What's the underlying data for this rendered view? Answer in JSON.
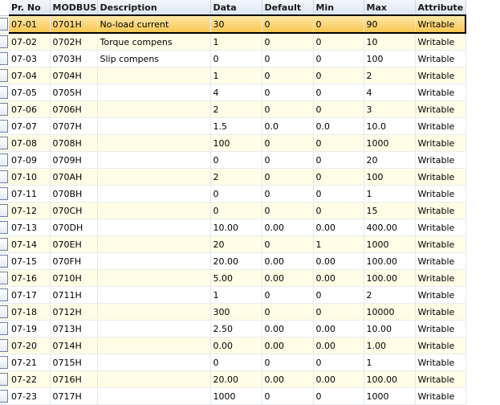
{
  "columns": [
    "Pr. No",
    "MODBUS",
    "Description",
    "Data",
    "Default",
    "Min",
    "Max",
    "Attribute"
  ],
  "selected_row": 0,
  "colors": {
    "selected": "#f8c750",
    "alt_row": "#fffde6",
    "header": "#dde6f3"
  },
  "rows": [
    [
      "07-01",
      "0701H",
      "No-load current",
      "30",
      "0",
      "0",
      "90",
      "Writable"
    ],
    [
      "07-02",
      "0702H",
      "Torque compens",
      "1",
      "0",
      "0",
      "10",
      "Writable"
    ],
    [
      "07-03",
      "0703H",
      "Slip compens",
      "0",
      "0",
      "0",
      "100",
      "Writable"
    ],
    [
      "07-04",
      "0704H",
      "",
      "1",
      "0",
      "0",
      "2",
      "Writable"
    ],
    [
      "07-05",
      "0705H",
      "",
      "4",
      "0",
      "0",
      "4",
      "Writable"
    ],
    [
      "07-06",
      "0706H",
      "",
      "2",
      "0",
      "0",
      "3",
      "Writable"
    ],
    [
      "07-07",
      "0707H",
      "",
      "1.5",
      "0.0",
      "0.0",
      "10.0",
      "Writable"
    ],
    [
      "07-08",
      "0708H",
      "",
      "100",
      "0",
      "0",
      "1000",
      "Writable"
    ],
    [
      "07-09",
      "0709H",
      "",
      "0",
      "0",
      "0",
      "20",
      "Writable"
    ],
    [
      "07-10",
      "070AH",
      "",
      "2",
      "0",
      "0",
      "100",
      "Writable"
    ],
    [
      "07-11",
      "070BH",
      "",
      "0",
      "0",
      "0",
      "1",
      "Writable"
    ],
    [
      "07-12",
      "070CH",
      "",
      "0",
      "0",
      "0",
      "15",
      "Writable"
    ],
    [
      "07-13",
      "070DH",
      "",
      "10.00",
      "0.00",
      "0.00",
      "400.00",
      "Writable"
    ],
    [
      "07-14",
      "070EH",
      "",
      "20",
      "0",
      "1",
      "1000",
      "Writable"
    ],
    [
      "07-15",
      "070FH",
      "",
      "20.00",
      "0.00",
      "0.00",
      "100.00",
      "Writable"
    ],
    [
      "07-16",
      "0710H",
      "",
      "5.00",
      "0.00",
      "0.00",
      "100.00",
      "Writable"
    ],
    [
      "07-17",
      "0711H",
      "",
      "1",
      "0",
      "0",
      "2",
      "Writable"
    ],
    [
      "07-18",
      "0712H",
      "",
      "300",
      "0",
      "0",
      "10000",
      "Writable"
    ],
    [
      "07-19",
      "0713H",
      "",
      "2.50",
      "0.00",
      "0.00",
      "10.00",
      "Writable"
    ],
    [
      "07-20",
      "0714H",
      "",
      "0.00",
      "0.00",
      "0.00",
      "1.00",
      "Writable"
    ],
    [
      "07-21",
      "0715H",
      "",
      "0",
      "0",
      "0",
      "1",
      "Writable"
    ],
    [
      "07-22",
      "0716H",
      "",
      "20.00",
      "0.00",
      "0.00",
      "100.00",
      "Writable"
    ],
    [
      "07-23",
      "0717H",
      "",
      "1000",
      "0",
      "0",
      "1000",
      "Writable"
    ]
  ]
}
